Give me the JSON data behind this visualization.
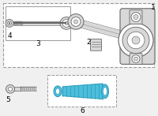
{
  "bg_color": "#f0f0f0",
  "part_color": "#d8d8d8",
  "line_color": "#999999",
  "dark_color": "#666666",
  "highlight_color": "#4bbfdc",
  "highlight_dark": "#2a9ab8",
  "white": "#ffffff",
  "label_1": "1",
  "label_2": "2",
  "label_3": "3",
  "label_4": "4",
  "label_5": "5",
  "label_6": "6",
  "font_size": 6.5,
  "fig_width": 2.0,
  "fig_height": 1.47,
  "dpi": 100
}
